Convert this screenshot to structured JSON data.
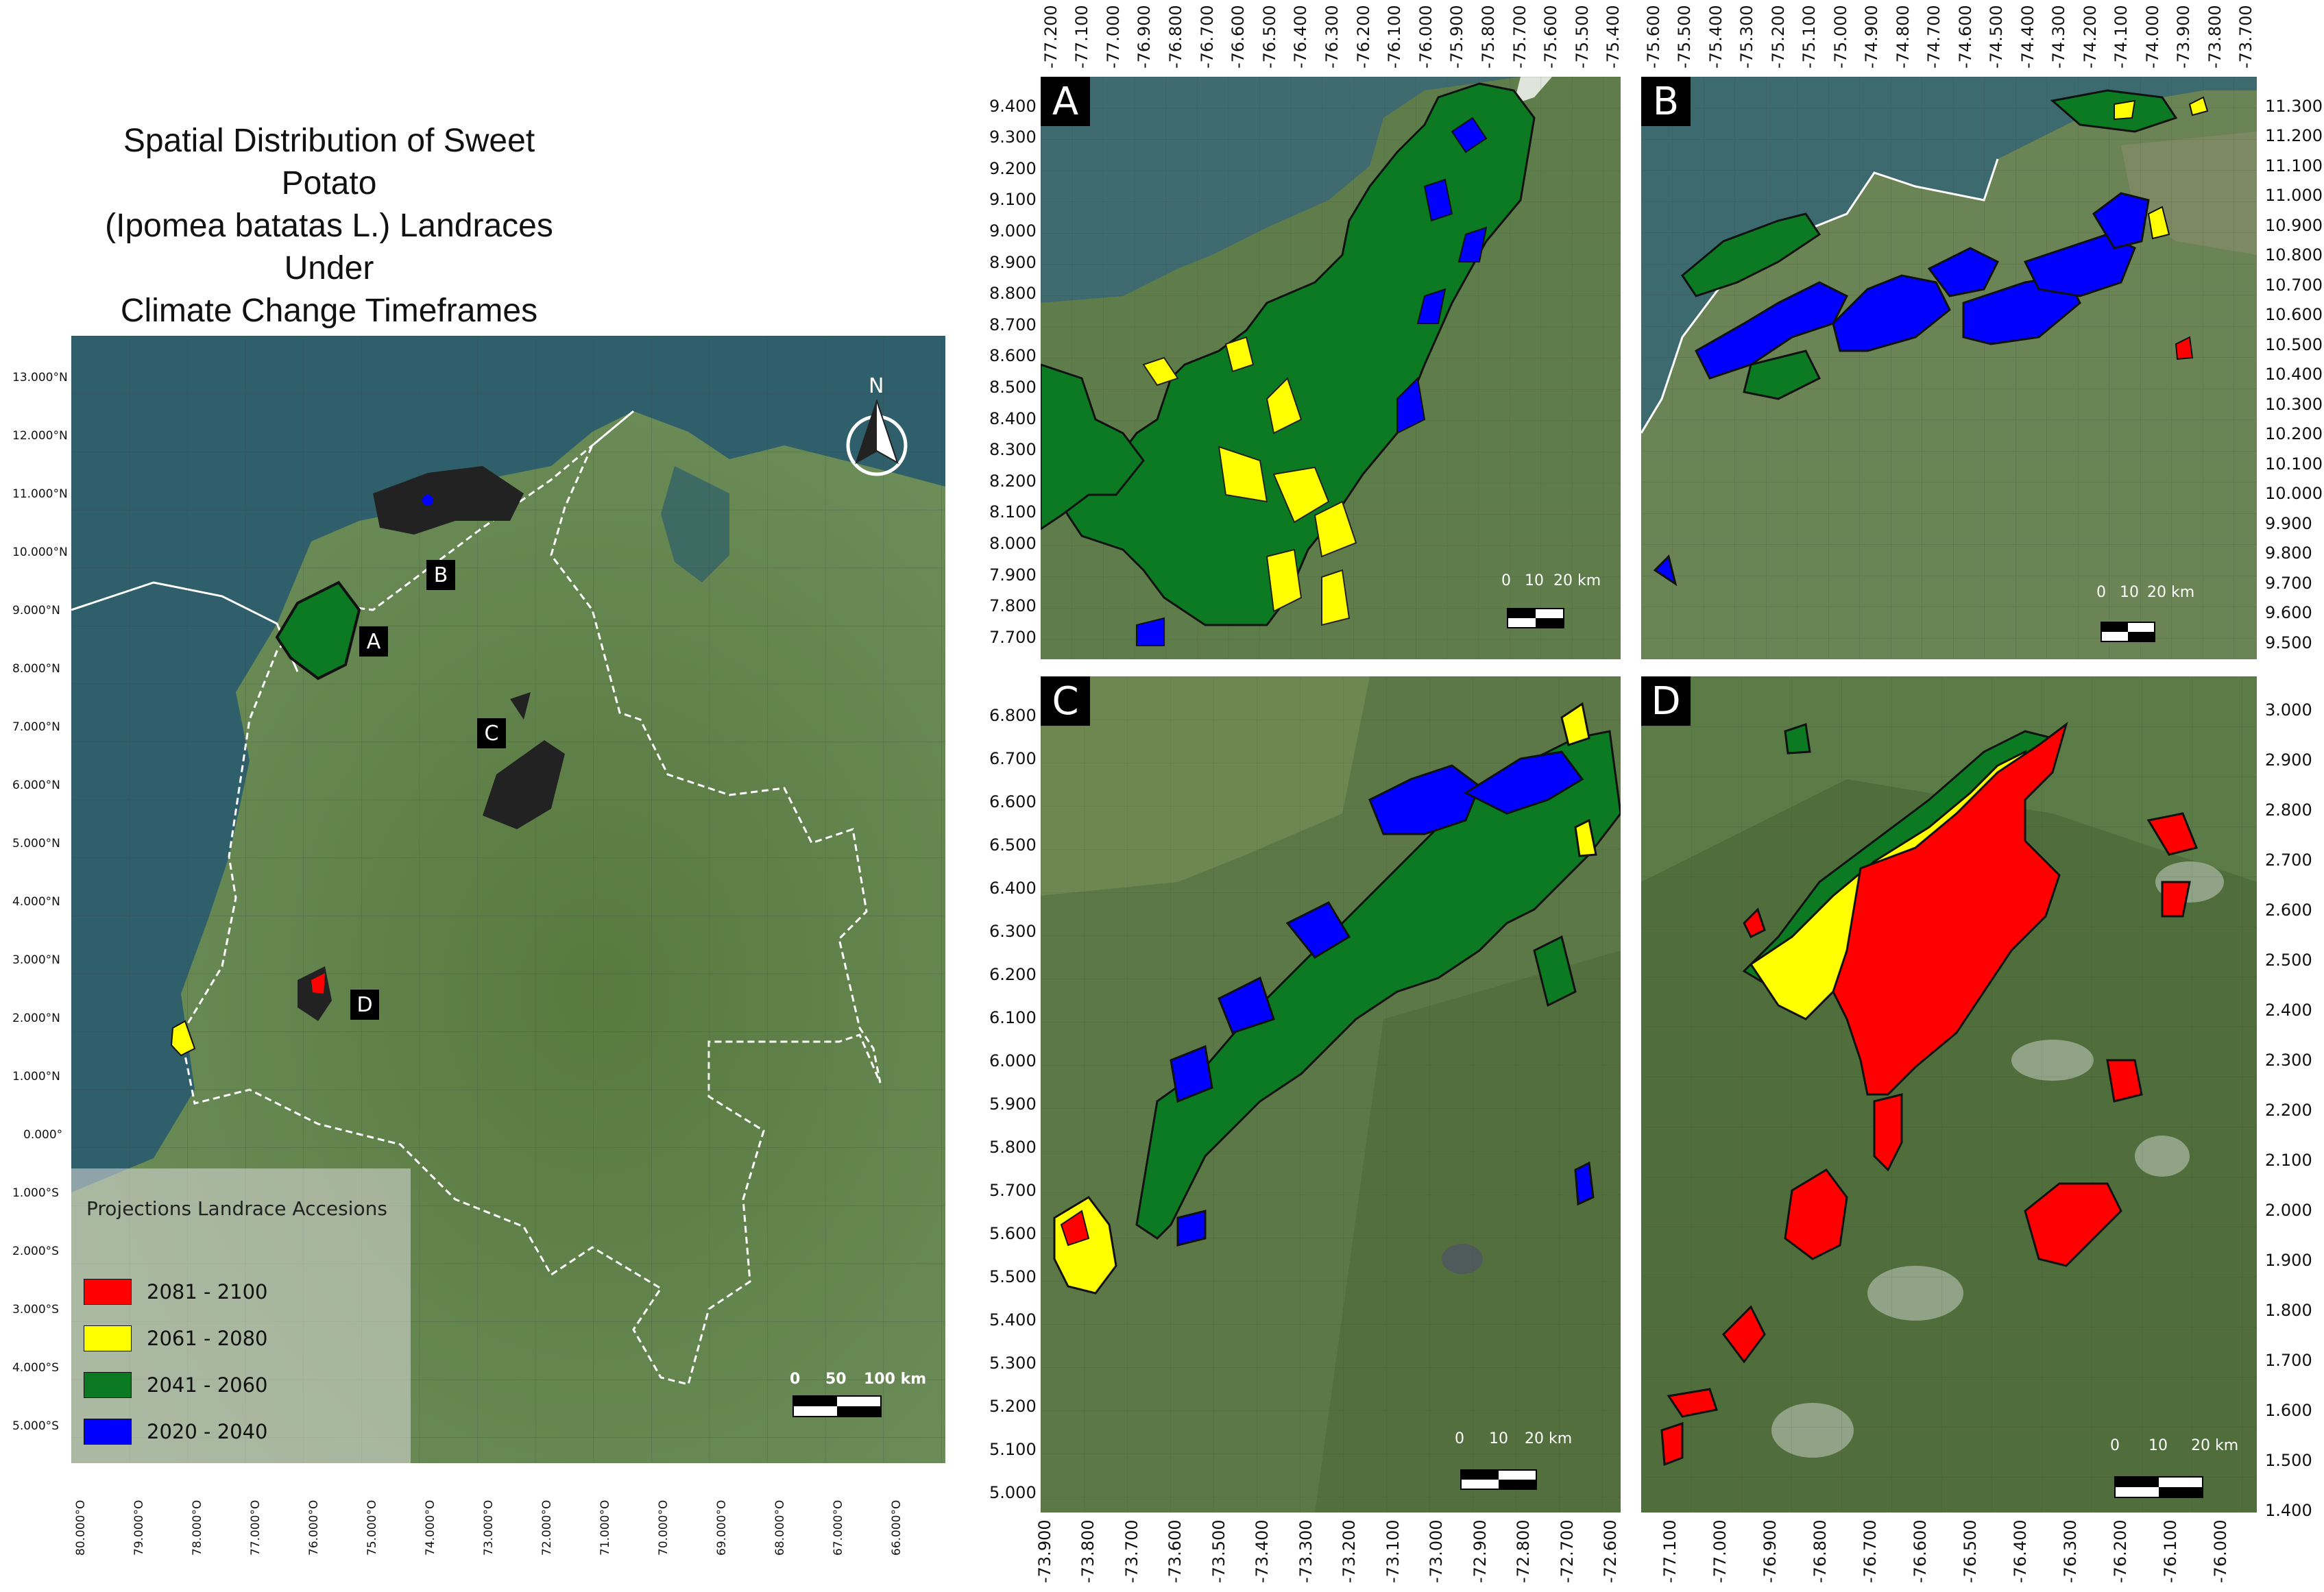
{
  "title_lines": [
    "Spatial Distribution of  Sweet Potato",
    "(Ipomea batatas L.) Landraces Under",
    "Climate Change Timeframes"
  ],
  "colors": {
    "period_2081_2100": "#ff0000",
    "period_2061_2080": "#ffff00",
    "period_2041_2060": "#0b7a22",
    "period_2020_2040": "#0000ff",
    "sea": "#2f5f6b",
    "land": "#5d7a48",
    "border": "#ffffff"
  },
  "overview": {
    "north_label": "N",
    "lat_ticks": [
      "13.000°N",
      "12.000°N",
      "11.000°N",
      "10.000°N",
      "9.000°N",
      "8.000°N",
      "7.000°N",
      "6.000°N",
      "5.000°N",
      "4.000°N",
      "3.000°N",
      "2.000°N",
      "1.000°N",
      "0.000°",
      "1.000°S",
      "2.000°S",
      "3.000°S",
      "4.000°S",
      "5.000°S"
    ],
    "lon_ticks": [
      "80.000°O",
      "79.000°O",
      "78.000°O",
      "77.000°O",
      "76.000°O",
      "75.000°O",
      "74.000°O",
      "73.000°O",
      "72.000°O",
      "71.000°O",
      "70.000°O",
      "69.000°O",
      "68.000°O",
      "67.000°O",
      "66.000°O"
    ],
    "site_labels": [
      "A",
      "B",
      "C",
      "D"
    ],
    "scale_labels": [
      "0",
      "50",
      "100 km"
    ]
  },
  "legend": {
    "title": "Projections Landrace Accesions",
    "items": [
      {
        "label": "2081 - 2100",
        "color": "#ff0000"
      },
      {
        "label": "2061 - 2080",
        "color": "#ffff00"
      },
      {
        "label": "2041 - 2060",
        "color": "#0b7a22"
      },
      {
        "label": "2020 - 2040",
        "color": "#0000ff"
      }
    ]
  },
  "panels": {
    "A": {
      "label": "A",
      "lon_ticks": [
        "-77.200",
        "-77.100",
        "-77.000",
        "-76.900",
        "-76.800",
        "-76.700",
        "-76.600",
        "-76.500",
        "-76.400",
        "-76.300",
        "-76.200",
        "-76.100",
        "-76.000",
        "-75.900",
        "-75.800",
        "-75.700",
        "-75.600",
        "-75.500",
        "-75.400"
      ],
      "lat_ticks": [
        "9.400",
        "9.300",
        "9.200",
        "9.100",
        "9.000",
        "8.900",
        "8.800",
        "8.700",
        "8.600",
        "8.500",
        "8.400",
        "8.300",
        "8.200",
        "8.100",
        "8.000",
        "7.900",
        "7.800",
        "7.700"
      ],
      "scale_labels": [
        "0",
        "10",
        "20 km"
      ]
    },
    "B": {
      "label": "B",
      "lon_ticks": [
        "-75.600",
        "-75.500",
        "-75.400",
        "-75.300",
        "-75.200",
        "-75.100",
        "-75.000",
        "-74.900",
        "-74.800",
        "-74.700",
        "-74.600",
        "-74.500",
        "-74.400",
        "-74.300",
        "-74.200",
        "-74.100",
        "-74.000",
        "-73.900",
        "-73.800",
        "-73.700"
      ],
      "lat_ticks": [
        "11.300",
        "11.200",
        "11.100",
        "11.000",
        "10.900",
        "10.800",
        "10.700",
        "10.600",
        "10.500",
        "10.400",
        "10.300",
        "10.200",
        "10.100",
        "10.000",
        "9.900",
        "9.800",
        "9.700",
        "9.600",
        "9.500"
      ],
      "scale_labels": [
        "0",
        "10",
        "20 km"
      ]
    },
    "C": {
      "label": "C",
      "lon_ticks": [
        "-73.900",
        "-73.800",
        "-73.700",
        "-73.600",
        "-73.500",
        "-73.400",
        "-73.300",
        "-73.200",
        "-73.100",
        "-73.000",
        "-72.900",
        "-72.800",
        "-72.700",
        "-72.600"
      ],
      "lat_ticks": [
        "6.800",
        "6.700",
        "6.600",
        "6.500",
        "6.400",
        "6.300",
        "6.200",
        "6.100",
        "6.000",
        "5.900",
        "5.800",
        "5.700",
        "5.600",
        "5.500",
        "5.400",
        "5.300",
        "5.200",
        "5.100",
        "5.000"
      ],
      "scale_labels": [
        "0",
        "10",
        "20 km"
      ]
    },
    "D": {
      "label": "D",
      "lon_ticks": [
        "-77.100",
        "-77.000",
        "-76.900",
        "-76.800",
        "-76.700",
        "-76.600",
        "-76.500",
        "-76.400",
        "-76.300",
        "-76.200",
        "-76.100",
        "-76.000"
      ],
      "lat_ticks": [
        "3.000",
        "2.900",
        "2.800",
        "2.700",
        "2.600",
        "2.500",
        "2.400",
        "2.300",
        "2.200",
        "2.100",
        "2.000",
        "1.900",
        "1.800",
        "1.700",
        "1.600",
        "1.500",
        "1.400"
      ],
      "scale_labels": [
        "0",
        "10",
        "20 km"
      ]
    }
  }
}
